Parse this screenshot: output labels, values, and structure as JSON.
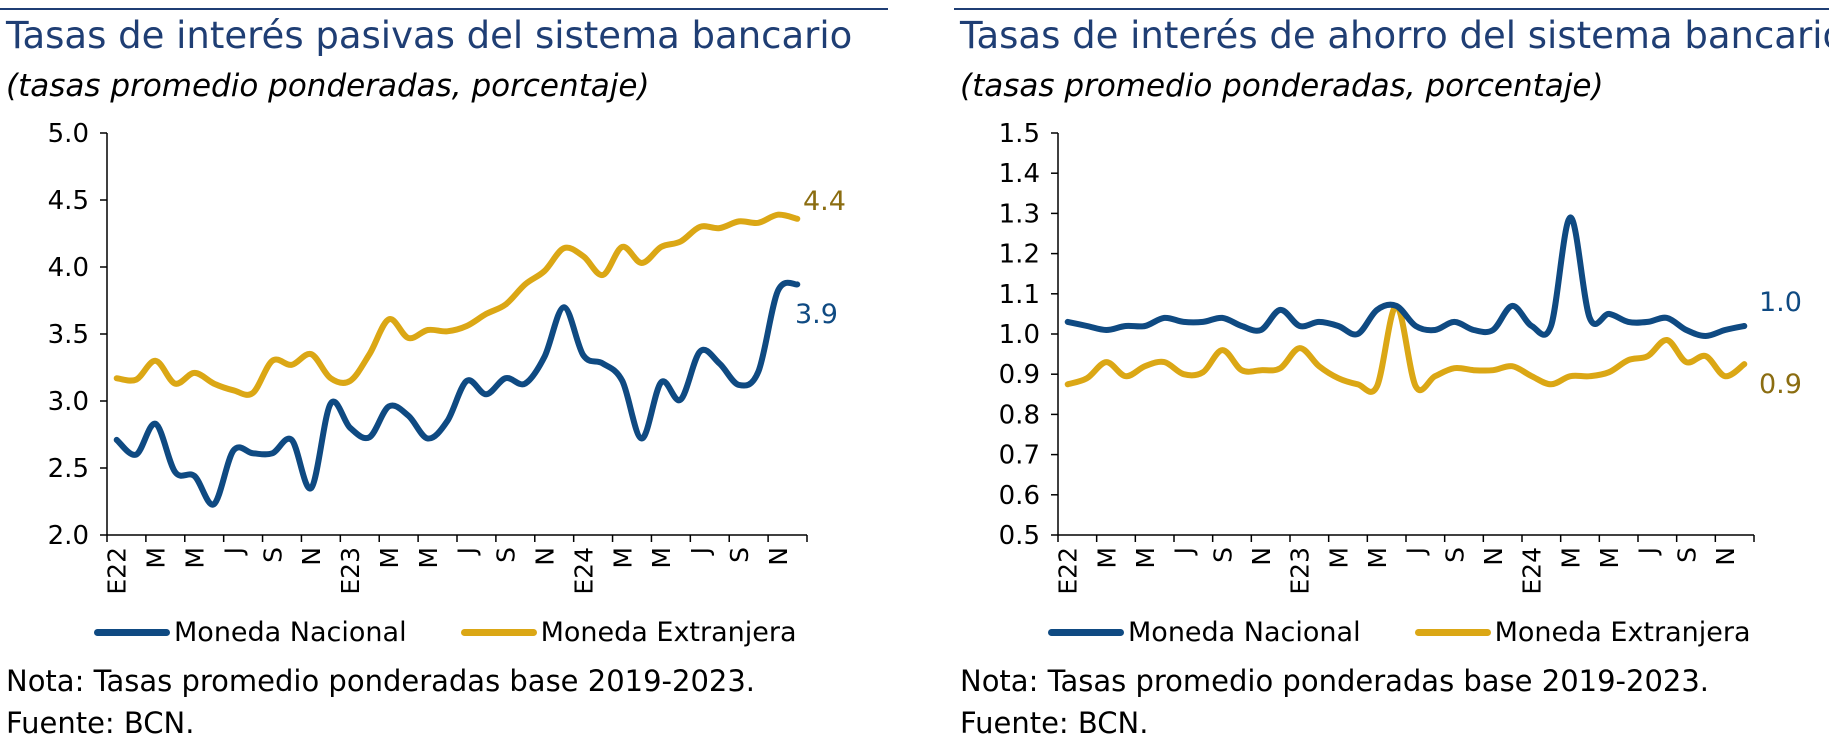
{
  "colors": {
    "nacional": "#0f4a82",
    "extranjera": "#dba715",
    "title": "#1f3e74",
    "value_ext": "#8b6d11"
  },
  "chart_data": [
    {
      "type": "line",
      "title": "Tasas de interés pasivas del sistema bancario",
      "subtitle": "(tasas promedio ponderadas, porcentaje)",
      "ylim": [
        2.0,
        5.0
      ],
      "yticks": [
        "5.0",
        "4.5",
        "4.0",
        "3.5",
        "3.0",
        "2.5",
        "2.0"
      ],
      "x_tick_labels": [
        "E22",
        "M",
        "M",
        "J",
        "S",
        "N",
        "E23",
        "M",
        "M",
        "J",
        "S",
        "N",
        "E24",
        "M",
        "M",
        "J",
        "S",
        "N"
      ],
      "series": [
        {
          "name": "Moneda Nacional",
          "end_label": "3.9",
          "values": [
            2.71,
            2.6,
            2.83,
            2.47,
            2.44,
            2.23,
            2.63,
            2.61,
            2.61,
            2.71,
            2.35,
            2.98,
            2.8,
            2.73,
            2.96,
            2.89,
            2.72,
            2.85,
            3.15,
            3.05,
            3.17,
            3.13,
            3.33,
            3.7,
            3.34,
            3.28,
            3.15,
            2.72,
            3.14,
            3.01,
            3.37,
            3.28,
            3.12,
            3.22,
            3.82,
            3.87
          ]
        },
        {
          "name": "Moneda Extranjera",
          "end_label": "4.4",
          "values": [
            3.17,
            3.16,
            3.3,
            3.13,
            3.21,
            3.13,
            3.08,
            3.06,
            3.3,
            3.27,
            3.35,
            3.17,
            3.15,
            3.35,
            3.61,
            3.47,
            3.53,
            3.52,
            3.56,
            3.65,
            3.72,
            3.87,
            3.97,
            4.14,
            4.08,
            3.94,
            4.15,
            4.03,
            4.15,
            4.19,
            4.3,
            4.29,
            4.34,
            4.33,
            4.39,
            4.36
          ]
        }
      ],
      "legend": [
        "Moneda Nacional",
        "Moneda Extranjera"
      ],
      "notes": [
        "Nota: Tasas promedio ponderadas base 2019-2023.",
        "Fuente: BCN."
      ]
    },
    {
      "type": "line",
      "title": "Tasas de interés de ahorro del sistema bancario",
      "subtitle": "(tasas promedio ponderadas, porcentaje)",
      "ylim": [
        0.5,
        1.5
      ],
      "yticks": [
        "1.5",
        "1.4",
        "1.3",
        "1.2",
        "1.1",
        "1.0",
        "0.9",
        "0.8",
        "0.7",
        "0.6",
        "0.5"
      ],
      "x_tick_labels": [
        "E22",
        "M",
        "M",
        "J",
        "S",
        "N",
        "E23",
        "M",
        "M",
        "J",
        "S",
        "N",
        "E24",
        "M",
        "M",
        "J",
        "S",
        "N"
      ],
      "series": [
        {
          "name": "Moneda Nacional",
          "end_label": "1.0",
          "values": [
            1.03,
            1.02,
            1.01,
            1.02,
            1.02,
            1.04,
            1.03,
            1.03,
            1.04,
            1.02,
            1.01,
            1.06,
            1.02,
            1.03,
            1.02,
            1.0,
            1.06,
            1.07,
            1.02,
            1.01,
            1.03,
            1.01,
            1.01,
            1.07,
            1.02,
            1.02,
            1.29,
            1.04,
            1.05,
            1.03,
            1.03,
            1.04,
            1.01,
            0.995,
            1.01,
            1.02
          ]
        },
        {
          "name": "Moneda Extranjera",
          "end_label": "0.9",
          "values": [
            0.875,
            0.89,
            0.93,
            0.895,
            0.92,
            0.93,
            0.9,
            0.905,
            0.96,
            0.91,
            0.91,
            0.915,
            0.965,
            0.92,
            0.89,
            0.875,
            0.87,
            1.07,
            0.87,
            0.895,
            0.915,
            0.91,
            0.91,
            0.92,
            0.895,
            0.875,
            0.895,
            0.895,
            0.905,
            0.935,
            0.945,
            0.985,
            0.93,
            0.945,
            0.895,
            0.925
          ]
        }
      ],
      "legend": [
        "Moneda Nacional",
        "Moneda Extranjera"
      ],
      "notes": [
        "Nota: Tasas promedio ponderadas base 2019-2023.",
        "Fuente: BCN."
      ]
    }
  ]
}
